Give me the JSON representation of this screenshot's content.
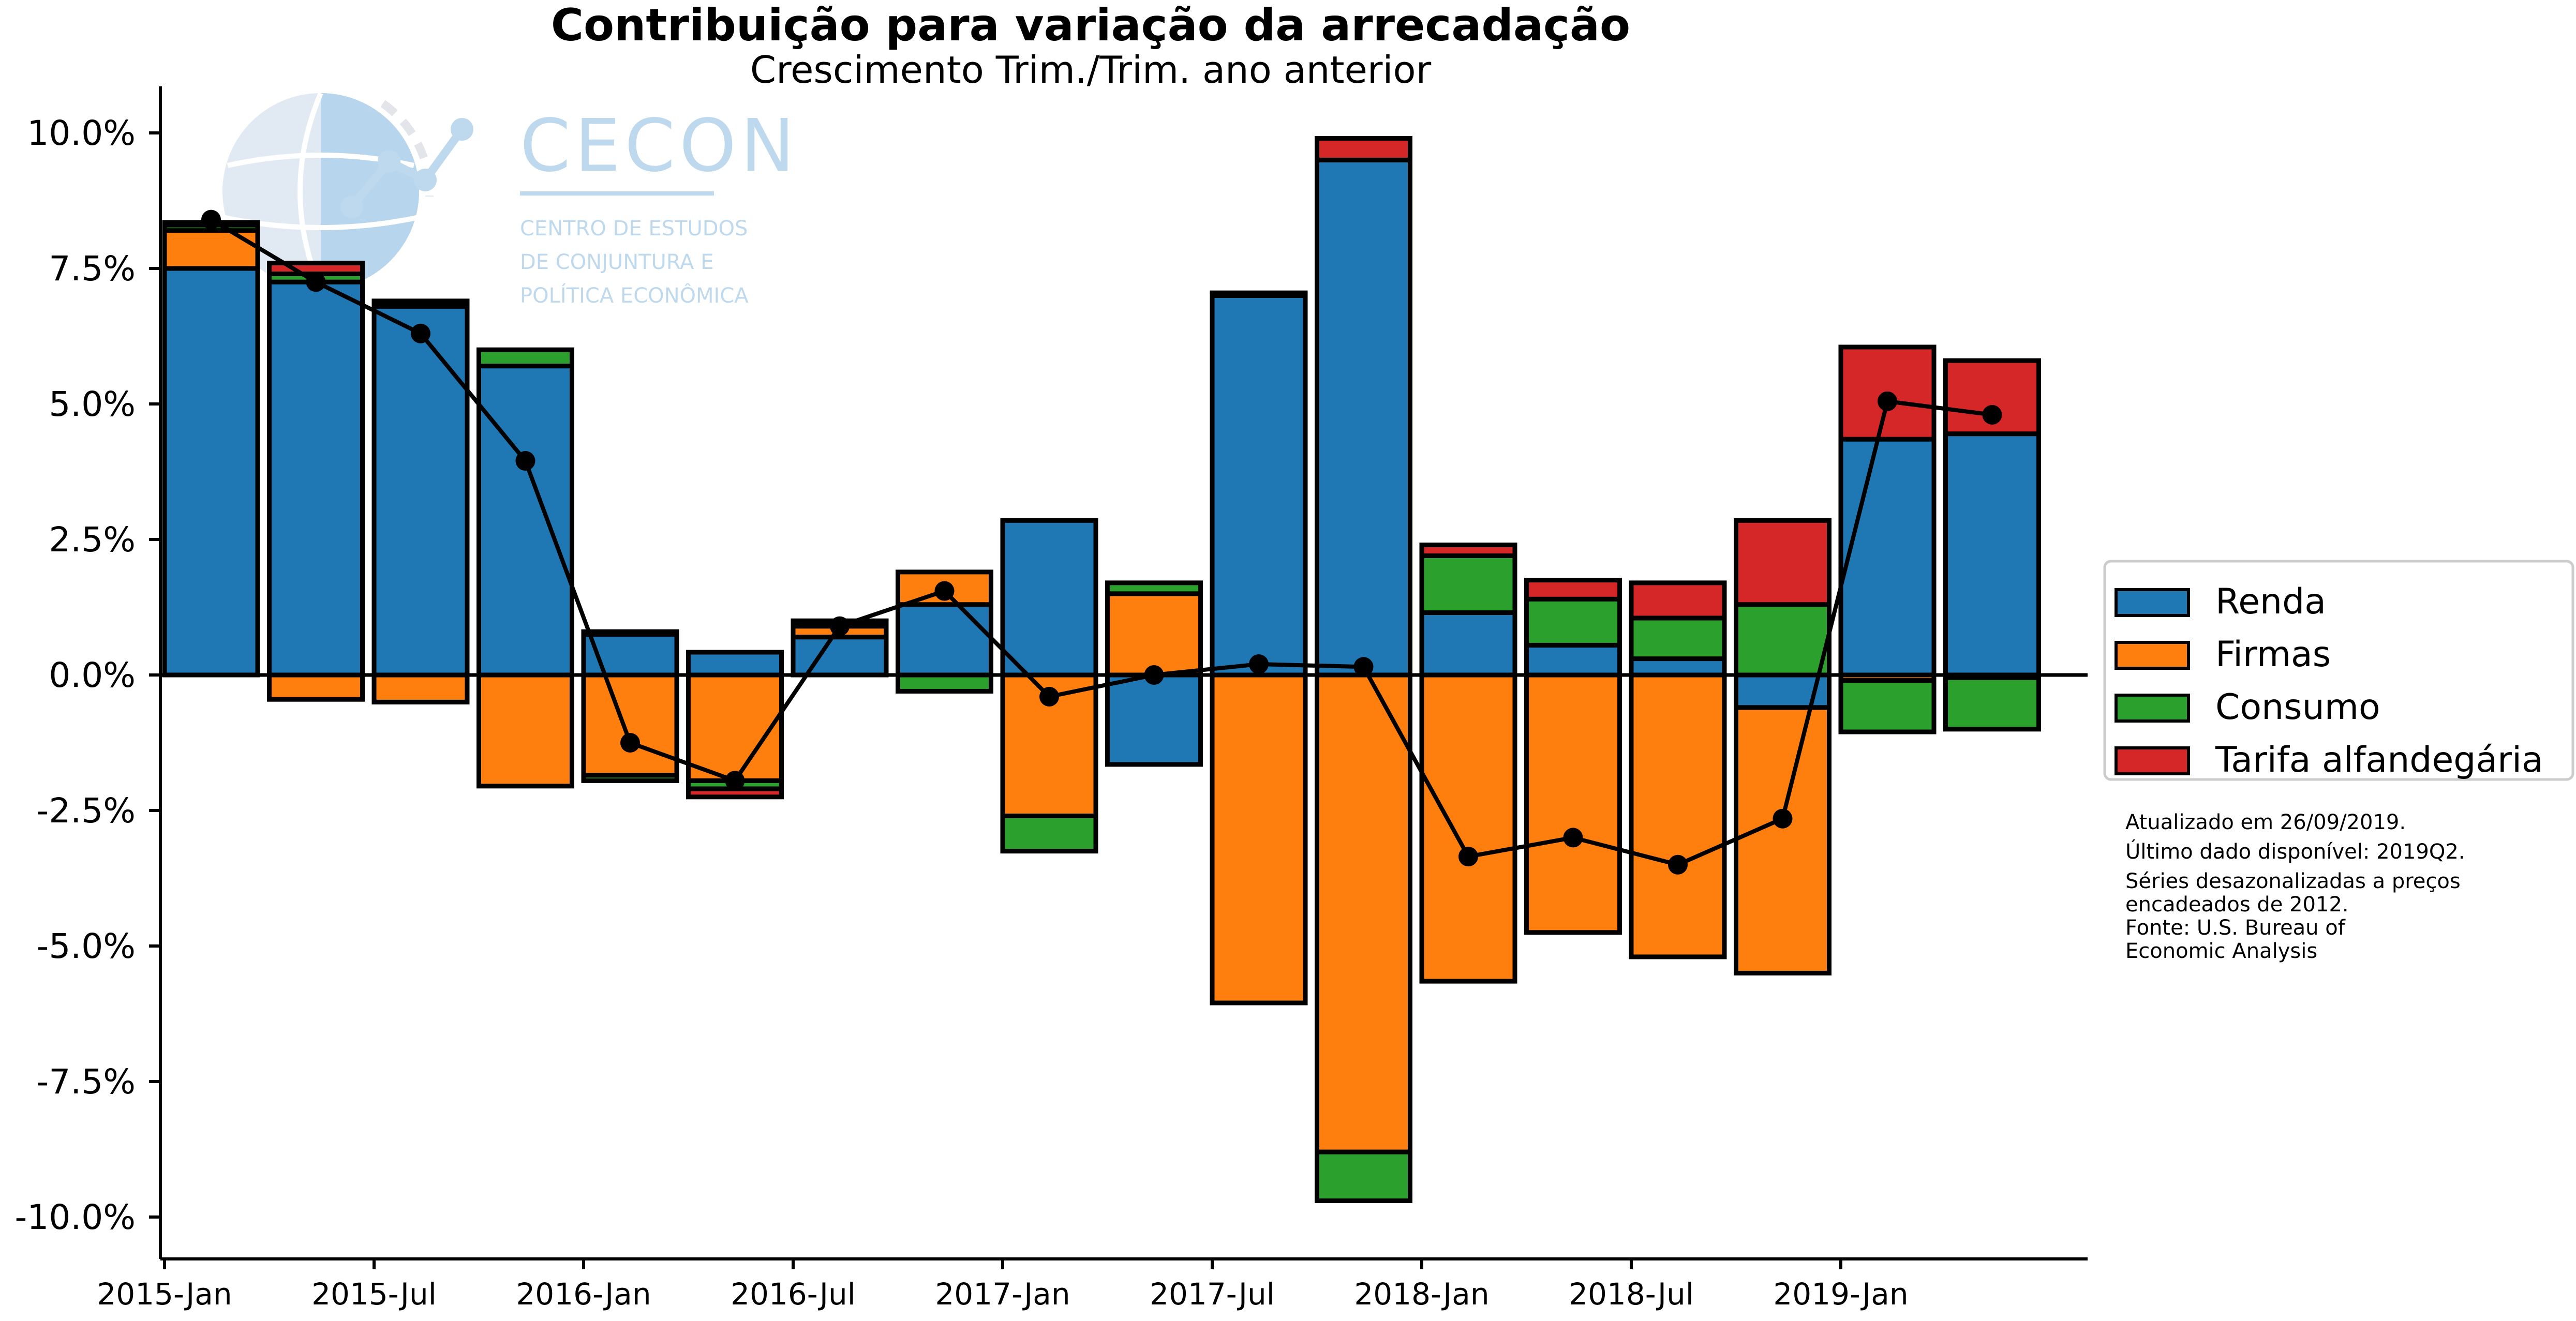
{
  "chart_data": {
    "type": "bar",
    "stacked": true,
    "title": "Contribuição para variação da arrecadação",
    "subtitle": "Crescimento Trim./Trim. ano anterior",
    "ylim": [
      -10.7,
      10.9
    ],
    "yticks": [
      10.0,
      7.5,
      5.0,
      2.5,
      0.0,
      -2.5,
      -5.0,
      -7.5,
      -10.0
    ],
    "ytick_labels": [
      "10.0%",
      "7.5%",
      "5.0%",
      "2.5%",
      "0.0%",
      "-2.5%",
      "-5.0%",
      "-7.5%",
      "-10.0%"
    ],
    "categories": [
      "2015-Jan",
      "2015-Apr",
      "2015-Jul",
      "2015-Oct",
      "2016-Jan",
      "2016-Apr",
      "2016-Jul",
      "2016-Oct",
      "2017-Jan",
      "2017-Apr",
      "2017-Jul",
      "2017-Oct",
      "2018-Jan",
      "2018-Apr",
      "2018-Jul",
      "2018-Oct",
      "2019-Jan",
      "2019-Apr"
    ],
    "xtick_labels": [
      {
        "index": 0,
        "label": "2015-Jan"
      },
      {
        "index": 2,
        "label": "2015-Jul"
      },
      {
        "index": 4,
        "label": "2016-Jan"
      },
      {
        "index": 6,
        "label": "2016-Jul"
      },
      {
        "index": 8,
        "label": "2017-Jan"
      },
      {
        "index": 10,
        "label": "2017-Jul"
      },
      {
        "index": 12,
        "label": "2018-Jan"
      },
      {
        "index": 14,
        "label": "2018-Jul"
      },
      {
        "index": 16,
        "label": "2019-Jan"
      }
    ],
    "series": [
      {
        "name": "Renda",
        "color": "#1f77b4",
        "values": [
          7.5,
          7.25,
          6.8,
          5.7,
          0.75,
          0.42,
          0.7,
          1.3,
          2.85,
          -1.65,
          7.0,
          9.5,
          1.15,
          0.55,
          0.3,
          -0.6,
          4.35,
          4.45
        ]
      },
      {
        "name": "Firmas",
        "color": "#ff7f0e",
        "values": [
          0.7,
          -0.45,
          -0.5,
          -2.05,
          -1.85,
          -1.95,
          0.2,
          0.6,
          -2.6,
          1.5,
          -6.05,
          -8.8,
          -5.65,
          -4.75,
          -5.2,
          -4.9,
          -0.1,
          -0.05
        ]
      },
      {
        "name": "Consumo",
        "color": "#2ca02c",
        "values": [
          0.1,
          0.15,
          0.05,
          0.3,
          -0.1,
          -0.15,
          0.05,
          -0.3,
          -0.65,
          0.2,
          0.05,
          -0.9,
          1.05,
          0.85,
          0.75,
          1.3,
          -0.95,
          -0.95
        ]
      },
      {
        "name": "Tarifa alfandegária",
        "color": "#d62728",
        "values": [
          0.05,
          0.2,
          0.05,
          0.0,
          0.05,
          -0.15,
          0.05,
          0.0,
          0.0,
          0.0,
          0.0,
          0.4,
          0.2,
          0.35,
          0.65,
          1.55,
          1.7,
          1.35
        ]
      }
    ],
    "line": {
      "name": "Total",
      "color": "#000000",
      "values": [
        8.4,
        7.25,
        6.3,
        3.95,
        -1.25,
        -1.95,
        0.9,
        1.55,
        -0.4,
        0.0,
        0.2,
        0.15,
        -3.35,
        -3.0,
        -3.5,
        -2.65,
        5.05,
        4.8
      ]
    },
    "legend": {
      "position": "right",
      "entries": [
        "Renda",
        "Firmas",
        "Consumo",
        "Tarifa alfandegária"
      ]
    },
    "grid": false
  },
  "notes": [
    "Atualizado em 26/09/2019.",
    "Último dado disponível: 2019Q2.",
    "Séries desazonalizadas a preços",
    "encadeados de 2012.",
    "Fonte: U.S. Bureau of",
    "Economic Analysis"
  ],
  "watermark": {
    "name": "CECON",
    "lines": [
      "CENTRO DE ESTUDOS",
      "DE CONJUNTURA E",
      "POLÍTICA ECONÔMICA"
    ],
    "color": "#a9cde8"
  }
}
